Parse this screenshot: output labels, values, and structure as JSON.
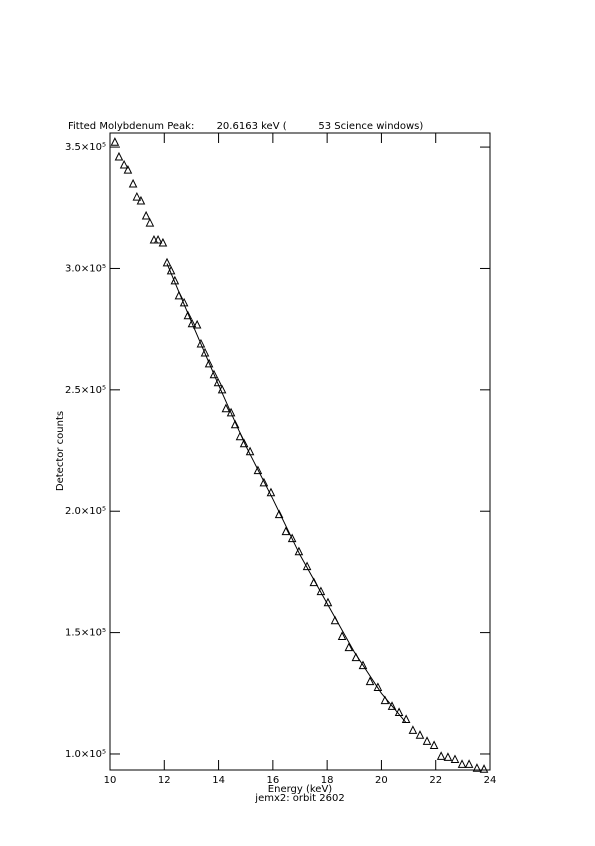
{
  "chart_data": {
    "type": "scatter",
    "title": "Fitted Molybdenum Peak:       20.6163 keV (          53 Science windows)",
    "x_label": "Energy (keV)",
    "subtitle": "jemx2: orbit 2602",
    "y_label": "Detector counts",
    "xlim": [
      10,
      24
    ],
    "xticks": [
      10,
      12,
      14,
      16,
      18,
      20,
      22,
      24
    ],
    "ylim": [
      93400,
      355800
    ],
    "yticks": [
      {
        "value": 100000,
        "label": "1.0×10⁵"
      },
      {
        "value": 150000,
        "label": "1.5×10⁵"
      },
      {
        "value": 200000,
        "label": "2.0×10⁵"
      },
      {
        "value": 250000,
        "label": "2.5×10⁵"
      },
      {
        "value": 300000,
        "label": "3.0×10⁵"
      },
      {
        "value": 350000,
        "label": "3.5×10⁵"
      }
    ],
    "series": [
      {
        "marker": "triangle",
        "color": "#000000",
        "x": [
          10.18,
          10.33,
          10.52,
          10.66,
          10.85,
          10.99,
          11.14,
          11.33,
          11.47,
          11.62,
          11.77,
          11.95,
          12.1,
          12.25,
          12.39,
          12.54,
          12.73,
          12.87,
          13.02,
          13.21,
          13.35,
          13.5,
          13.65,
          13.83,
          13.98,
          14.13,
          14.27,
          14.46,
          14.61,
          14.79,
          14.94,
          15.16,
          15.45,
          15.67,
          15.93,
          16.23,
          16.48,
          16.71,
          16.96,
          17.26,
          17.51,
          17.77,
          18.03,
          18.29,
          18.55,
          18.8,
          19.06,
          19.32,
          19.58,
          19.87,
          20.13,
          20.39,
          20.65,
          20.91,
          21.16,
          21.42,
          21.68,
          21.94,
          22.2,
          22.45,
          22.71,
          22.97,
          23.23,
          23.52,
          23.78
        ],
        "values": [
          352000,
          345900,
          342600,
          340500,
          334800,
          329400,
          327800,
          321600,
          318700,
          311700,
          311700,
          310500,
          302300,
          299000,
          294900,
          288700,
          285800,
          280500,
          277200,
          276700,
          268900,
          265200,
          260700,
          256200,
          252900,
          250000,
          242200,
          240500,
          235600,
          230700,
          227800,
          224500,
          216700,
          211700,
          207600,
          198600,
          191600,
          188700,
          183300,
          177200,
          170600,
          166900,
          162300,
          154900,
          148400,
          143800,
          139700,
          136400,
          129800,
          127400,
          122000,
          119600,
          117100,
          114200,
          109700,
          107700,
          105200,
          103500,
          99000,
          98600,
          97700,
          95700,
          95700,
          94100,
          93700
        ]
      },
      {
        "marker": "line",
        "color": "#000000",
        "x": [
          12.1,
          13,
          14,
          15,
          16,
          17,
          18,
          19,
          20,
          20.9
        ],
        "values": [
          302000,
          278000,
          252000,
          227000,
          205000,
          182000,
          162000,
          142000,
          125000,
          113000
        ]
      }
    ]
  }
}
